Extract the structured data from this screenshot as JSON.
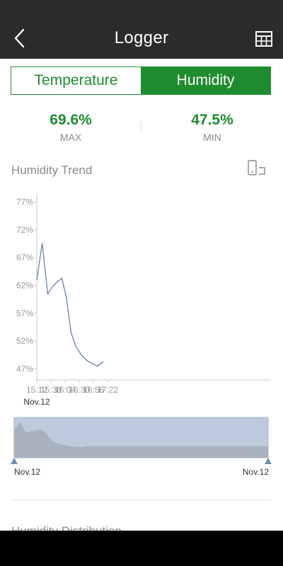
{
  "header": {
    "title": "Logger",
    "back_icon": "chevron-left-icon",
    "table_icon": "table-grid-icon"
  },
  "tabs": [
    {
      "label": "Temperature",
      "active": false
    },
    {
      "label": "Humidity",
      "active": true
    }
  ],
  "stats": {
    "max": {
      "value": "69.6%",
      "label": "MAX"
    },
    "min": {
      "value": "47.5%",
      "label": "MIN"
    }
  },
  "trend": {
    "title": "Humidity Trend",
    "orientation_icon": "rotate-screen-icon"
  },
  "chart_data": {
    "type": "line",
    "ylabel_ticks": [
      "77%",
      "72%",
      "67%",
      "62%",
      "57%",
      "52%",
      "47%"
    ],
    "ylim": [
      45,
      79
    ],
    "yticks": [
      77,
      72,
      67,
      62,
      57,
      52,
      47
    ],
    "xlim": [
      912,
      1342
    ],
    "xticks": [
      {
        "t": 912,
        "label": "15:12"
      },
      {
        "t": 938,
        "label": "15:38"
      },
      {
        "t": 964,
        "label": "16:04"
      },
      {
        "t": 990,
        "label": "16:30"
      },
      {
        "t": 1016,
        "label": "16:56"
      },
      {
        "t": 1042,
        "label": "17:22"
      }
    ],
    "x_sublabel": "Nov.12",
    "series": [
      {
        "color": "#5a78a6",
        "points": [
          [
            912,
            63.0
          ],
          [
            922,
            69.6
          ],
          [
            932,
            60.5
          ],
          [
            941,
            61.8
          ],
          [
            950,
            62.7
          ],
          [
            958,
            63.3
          ],
          [
            966,
            60.0
          ],
          [
            975,
            53.5
          ],
          [
            984,
            51.0
          ],
          [
            994,
            49.5
          ],
          [
            1004,
            48.5
          ],
          [
            1014,
            47.9
          ],
          [
            1024,
            47.5
          ],
          [
            1034,
            48.3
          ]
        ]
      }
    ],
    "grid": false,
    "navigator": {
      "start_label": "Nov.12",
      "end_label": "Nov.12"
    }
  },
  "distribution": {
    "title": "Humidity Distribution"
  }
}
